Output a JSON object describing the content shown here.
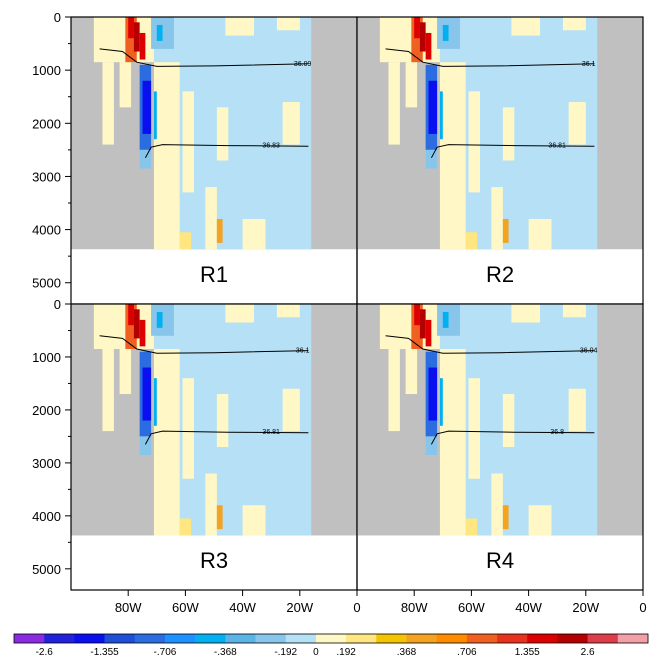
{
  "chart_data": {
    "type": "heatmap",
    "description": "Four-panel ocean depth-longitude section (salinity anomaly) with two contour lines each",
    "x_axis": {
      "ticks": [
        "80W",
        "60W",
        "40W",
        "20W",
        "0"
      ],
      "tick_values": [
        -80,
        -60,
        -40,
        -20,
        0
      ],
      "range": [
        -100,
        0
      ]
    },
    "y_axis": {
      "ticks": [
        "0",
        "1000",
        "2000",
        "3000",
        "4000",
        "5000"
      ],
      "tick_values": [
        0,
        1000,
        2000,
        3000,
        4000,
        5000
      ],
      "range": [
        0,
        5400
      ],
      "inverted": true
    },
    "panels": [
      {
        "label": "R1",
        "upper_contour_label": "36.09",
        "lower_contour_label": "36.83"
      },
      {
        "label": "R2",
        "upper_contour_label": "36.1",
        "lower_contour_label": "36.81"
      },
      {
        "label": "R3",
        "upper_contour_label": "36.1",
        "lower_contour_label": "36.81"
      },
      {
        "label": "R4",
        "upper_contour_label": "36.04",
        "lower_contour_label": "36.8"
      }
    ],
    "colorbar": {
      "labels": [
        "-2.6",
        "-1.355",
        "-.706",
        "-.368",
        "-.192",
        "0",
        ".192",
        ".368",
        ".706",
        "1.355",
        "2.6"
      ],
      "colors": [
        "#8a2be2",
        "#2222dd",
        "#0a0ff0",
        "#1f4fd8",
        "#2b6de0",
        "#1e90ff",
        "#00b0f0",
        "#5cb3e6",
        "#87c5ea",
        "#b5e0f5",
        "#fff8c6",
        "#ffe680",
        "#f5c400",
        "#f4a321",
        "#ff8c00",
        "#f06020",
        "#e8321e",
        "#dc0000",
        "#b40000",
        "#dd3c4a",
        "#f2a0a8"
      ]
    }
  }
}
